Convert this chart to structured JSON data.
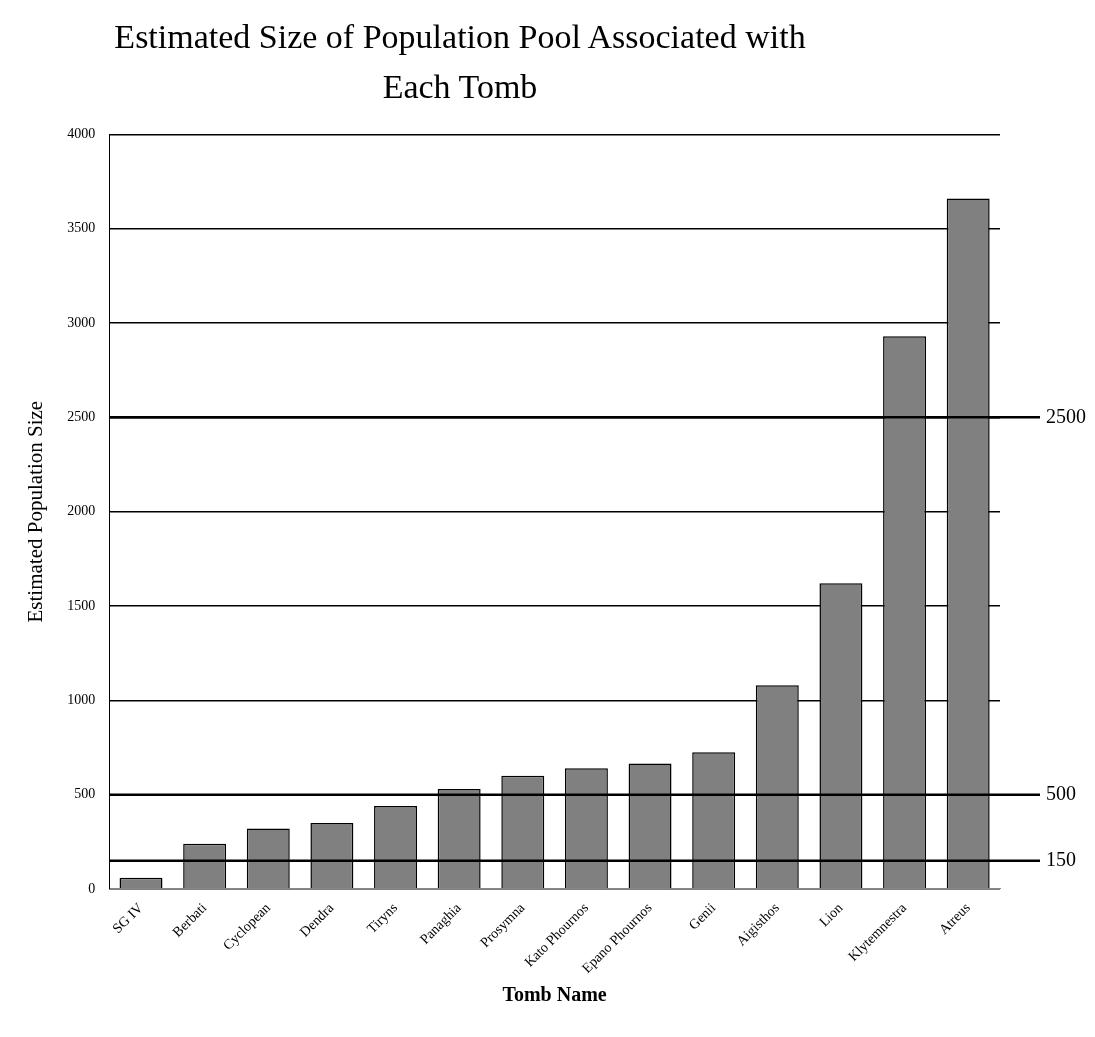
{
  "chart_data": {
    "type": "bar",
    "title": "Estimated Size of Population Pool Associated with Each Tomb",
    "xlabel": "Tomb Name",
    "ylabel": "Estimated Population Size",
    "categories": [
      "SG IV",
      "Berbati",
      "Cyclopean",
      "Dendra",
      "Tiryns",
      "Panaghia",
      "Prosymna",
      "Kato Phournos",
      "Epano Phournos",
      "Genii",
      "Aigisthos",
      "Lion",
      "Klytemnestra",
      "Atreus"
    ],
    "values": [
      60,
      240,
      320,
      350,
      440,
      530,
      600,
      640,
      665,
      725,
      1080,
      1620,
      2930,
      3660
    ],
    "color": "#808080",
    "ylim": [
      0,
      4000
    ],
    "yticks": [
      0,
      500,
      1000,
      1500,
      2000,
      2500,
      3000,
      3500,
      4000
    ],
    "grid": "y",
    "legend": false,
    "ref_lines": [
      {
        "axis": "y",
        "value": 2500,
        "label": "2500"
      },
      {
        "axis": "y",
        "value": 500,
        "label": "500"
      },
      {
        "axis": "y",
        "value": 150,
        "label": "150"
      }
    ]
  }
}
